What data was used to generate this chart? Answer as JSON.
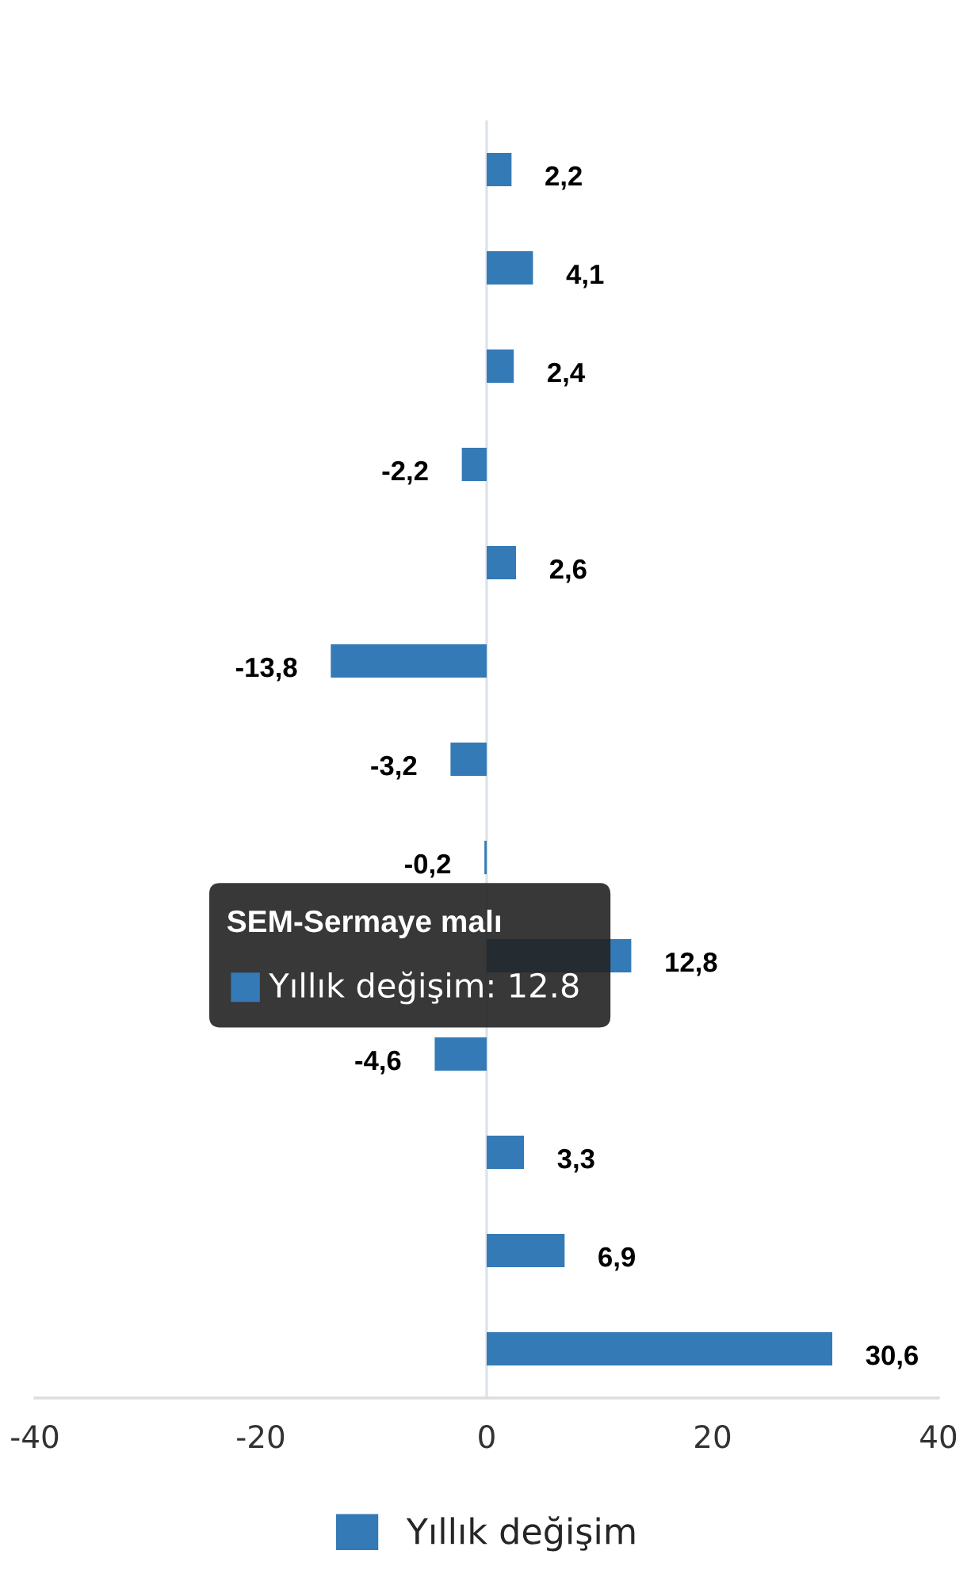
{
  "chart_data": {
    "type": "bar",
    "orientation": "horizontal",
    "categories": [
      null,
      null,
      null,
      null,
      null,
      null,
      null,
      null,
      null,
      null,
      null,
      null,
      null
    ],
    "series": [
      {
        "name": "Yıllık değişim",
        "color": "#337ab7",
        "values": [
          2.2,
          4.1,
          2.4,
          -2.2,
          2.6,
          -13.8,
          -3.2,
          -0.2,
          12.8,
          -4.6,
          3.3,
          6.9,
          30.6
        ],
        "value_labels": [
          "2,2",
          "4,1",
          "2,4",
          "-2,2",
          "2,6",
          "-13,8",
          "-3,2",
          "-0,2",
          "12,8",
          "-4,6",
          "3,3",
          "6,9",
          "30,6"
        ]
      }
    ],
    "xlim": [
      -40,
      40
    ],
    "xticks": [
      -40,
      -20,
      0,
      20,
      40
    ],
    "legend": "bottom",
    "tick_labels": "x",
    "ref_lines": [
      {
        "axis": "x",
        "value": 0,
        "color": "#dde3ea"
      }
    ],
    "annotations": [
      "SEM-Sermaye malı",
      "Yıllık değişim: 12.8"
    ]
  }
}
